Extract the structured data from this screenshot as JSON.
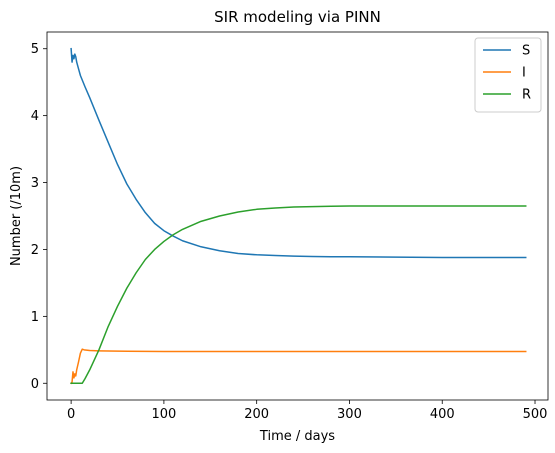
{
  "chart_data": {
    "type": "line",
    "title": "SIR modeling via PINN",
    "xlabel": "Time / days",
    "ylabel": "Number (/10m)",
    "xlim": [
      -26,
      514
    ],
    "ylim": [
      -0.25,
      5.25
    ],
    "xticks": [
      0,
      100,
      200,
      300,
      400,
      500
    ],
    "yticks": [
      0,
      1,
      2,
      3,
      4,
      5
    ],
    "grid": false,
    "legend_position": "top-right",
    "series": [
      {
        "name": "S",
        "color": "#1f77b4",
        "x": [
          0,
          1,
          2,
          3,
          4,
          5,
          6,
          8,
          10,
          15,
          20,
          30,
          40,
          50,
          60,
          70,
          80,
          90,
          100,
          110,
          120,
          140,
          160,
          180,
          200,
          220,
          240,
          260,
          280,
          300,
          350,
          400,
          450,
          490
        ],
        "y": [
          5.0,
          4.8,
          4.9,
          4.85,
          4.92,
          4.88,
          4.8,
          4.7,
          4.6,
          4.43,
          4.27,
          3.93,
          3.6,
          3.27,
          2.98,
          2.75,
          2.55,
          2.39,
          2.28,
          2.2,
          2.13,
          2.04,
          1.98,
          1.94,
          1.92,
          1.91,
          1.9,
          1.895,
          1.89,
          1.89,
          1.885,
          1.88,
          1.88,
          1.88
        ]
      },
      {
        "name": "I",
        "color": "#ff7f0e",
        "x": [
          0,
          1,
          2,
          3,
          4,
          5,
          6,
          8,
          10,
          12,
          14,
          20,
          30,
          50,
          100,
          200,
          300,
          400,
          490
        ],
        "y": [
          0.0,
          0.02,
          0.17,
          0.08,
          0.14,
          0.11,
          0.2,
          0.32,
          0.45,
          0.51,
          0.5,
          0.49,
          0.485,
          0.48,
          0.475,
          0.475,
          0.475,
          0.475,
          0.475
        ]
      },
      {
        "name": "R",
        "color": "#2ca02c",
        "x": [
          0,
          5,
          10,
          12,
          15,
          20,
          30,
          40,
          50,
          60,
          70,
          80,
          90,
          100,
          110,
          120,
          140,
          160,
          180,
          200,
          220,
          240,
          260,
          280,
          300,
          350,
          400,
          450,
          490
        ],
        "y": [
          0.0,
          0.0,
          0.0,
          0.0,
          0.07,
          0.2,
          0.5,
          0.85,
          1.15,
          1.42,
          1.65,
          1.85,
          2.0,
          2.12,
          2.22,
          2.3,
          2.42,
          2.5,
          2.56,
          2.6,
          2.62,
          2.635,
          2.64,
          2.645,
          2.65,
          2.65,
          2.65,
          2.65,
          2.65
        ]
      }
    ]
  }
}
